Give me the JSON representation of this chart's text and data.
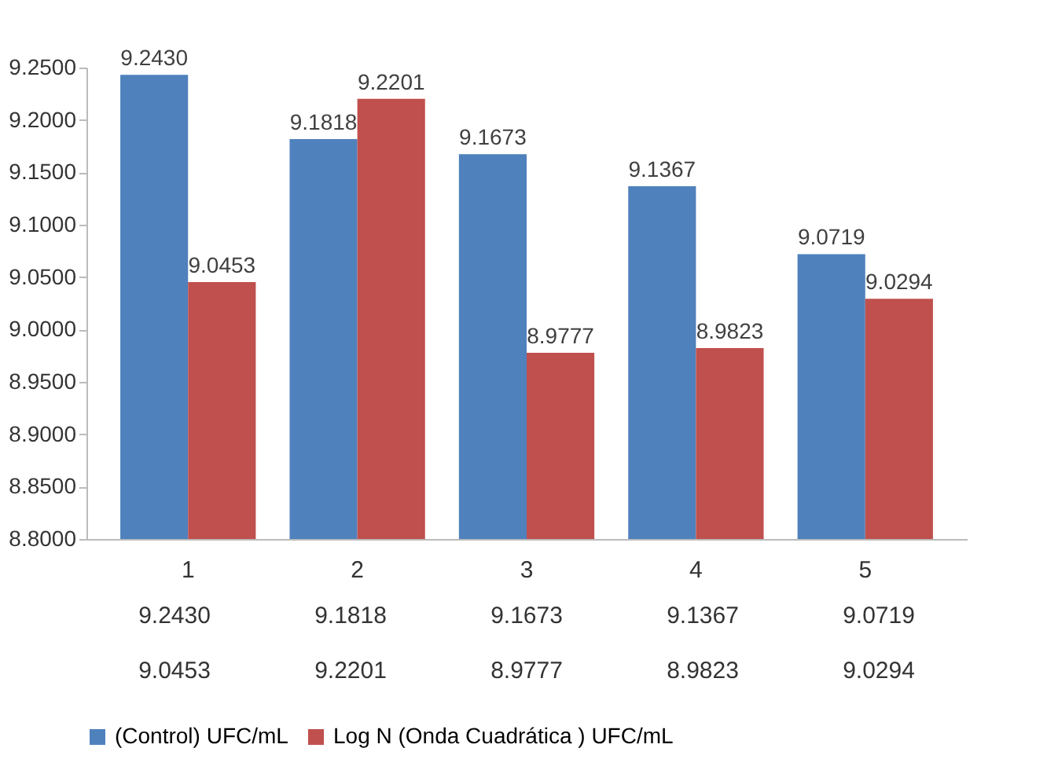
{
  "chart_data": {
    "type": "bar",
    "categories": [
      "1",
      "2",
      "3",
      "4",
      "5"
    ],
    "series": [
      {
        "name": "(Control) UFC/mL",
        "color": "#4f81bd",
        "values": [
          9.243,
          9.1818,
          9.1673,
          9.1367,
          9.0719
        ],
        "value_labels": [
          "9.2430",
          "9.1818",
          "9.1673",
          "9.1367",
          "9.0719"
        ]
      },
      {
        "name": "Log N (Onda Cuadrática ) UFC/mL",
        "color": "#c0504d",
        "values": [
          9.0453,
          9.2201,
          8.9777,
          8.9823,
          9.0294
        ],
        "value_labels": [
          "9.0453",
          "9.2201",
          "8.9777",
          "8.9823",
          "9.0294"
        ]
      }
    ],
    "ylim": [
      8.8,
      9.25
    ],
    "yticks": [
      {
        "value": 8.8,
        "label": "8.8000"
      },
      {
        "value": 8.85,
        "label": "8.8500"
      },
      {
        "value": 8.9,
        "label": "8.9000"
      },
      {
        "value": 8.95,
        "label": "8.9500"
      },
      {
        "value": 9.0,
        "label": "9.0000"
      },
      {
        "value": 9.05,
        "label": "9.0500"
      },
      {
        "value": 9.1,
        "label": "9.1000"
      },
      {
        "value": 9.15,
        "label": "9.1500"
      },
      {
        "value": 9.2,
        "label": "9.2000"
      },
      {
        "value": 9.25,
        "label": "9.2500"
      }
    ],
    "legend": "bottom"
  }
}
